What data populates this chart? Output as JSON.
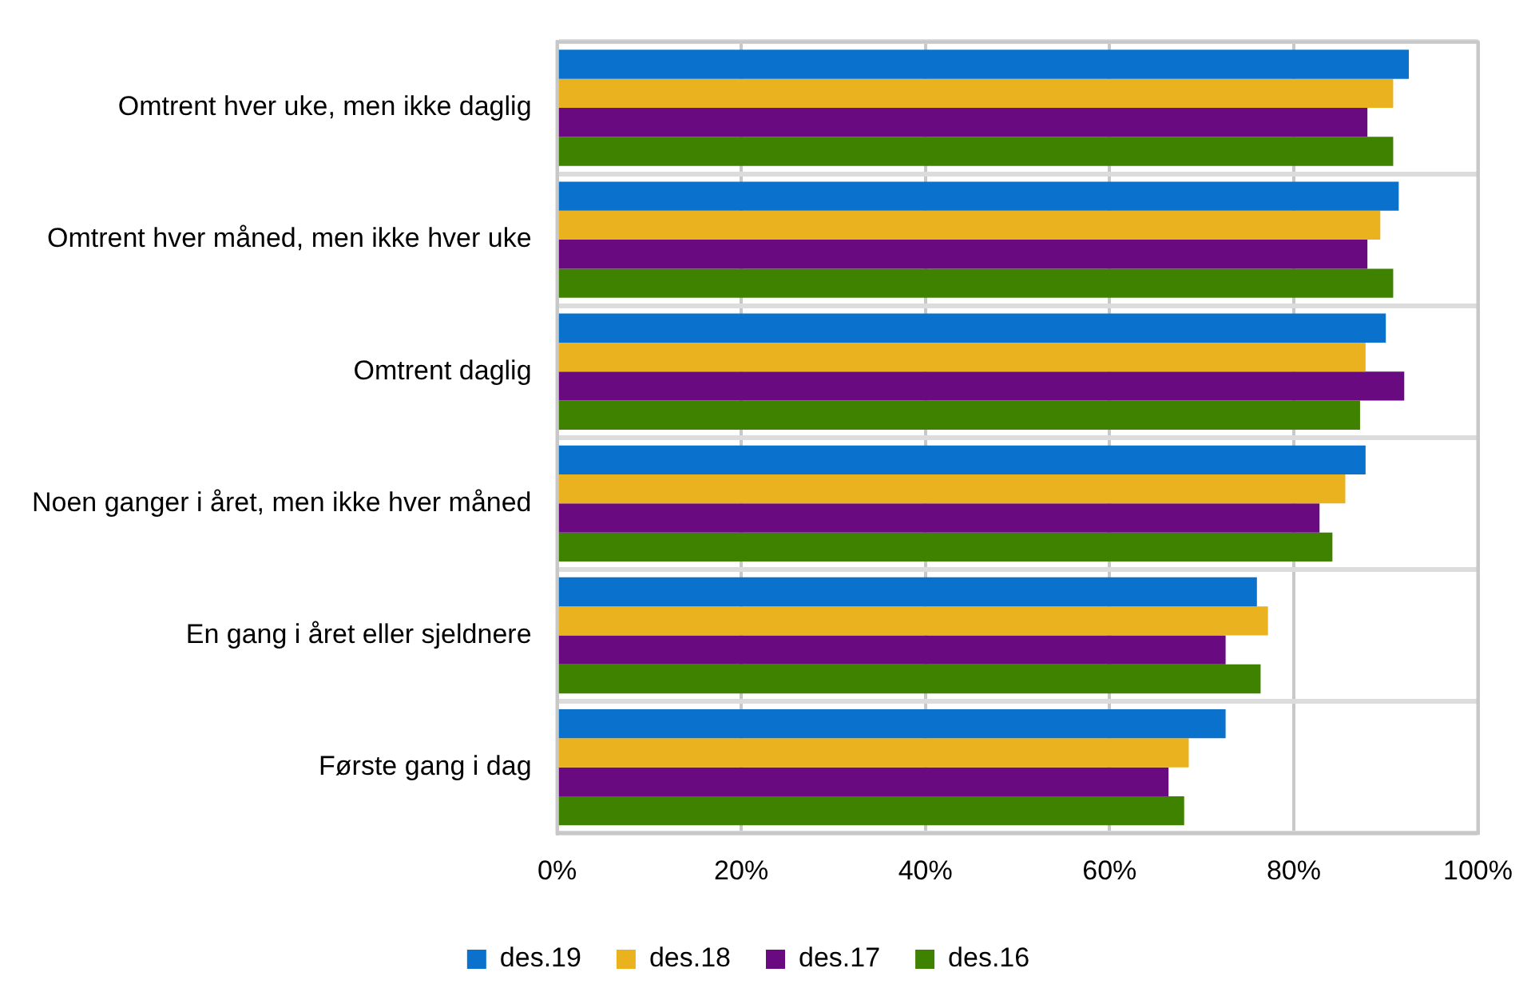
{
  "chart_data": {
    "type": "bar",
    "orientation": "horizontal",
    "categories": [
      "Omtrent hver uke, men ikke daglig",
      "Omtrent hver måned, men ikke hver uke",
      "Omtrent daglig",
      "Noen ganger i året, men ikke hver måned",
      "En gang i året eller sjeldnere",
      "Første gang i dag"
    ],
    "series": [
      {
        "name": "des.19",
        "color": "#0a72cc",
        "values": [
          92.5,
          91.4,
          90.0,
          87.8,
          76.0,
          72.6
        ]
      },
      {
        "name": "des.18",
        "color": "#ebb220",
        "values": [
          90.8,
          89.4,
          87.8,
          85.6,
          77.2,
          68.6
        ]
      },
      {
        "name": "des.17",
        "color": "#6a0a80",
        "values": [
          88.0,
          88.0,
          92.0,
          82.8,
          72.6,
          66.4
        ]
      },
      {
        "name": "des.16",
        "color": "#3f8200",
        "values": [
          90.8,
          90.8,
          87.2,
          84.2,
          76.4,
          68.1
        ]
      }
    ],
    "xlim": [
      0,
      100
    ],
    "xticks": [
      {
        "value": 0,
        "label": "0%"
      },
      {
        "value": 20,
        "label": "20%"
      },
      {
        "value": 40,
        "label": "40%"
      },
      {
        "value": 60,
        "label": "60%"
      },
      {
        "value": 80,
        "label": "80%"
      },
      {
        "value": 100,
        "label": "100%"
      }
    ],
    "grid": true,
    "legend": "bottom"
  }
}
